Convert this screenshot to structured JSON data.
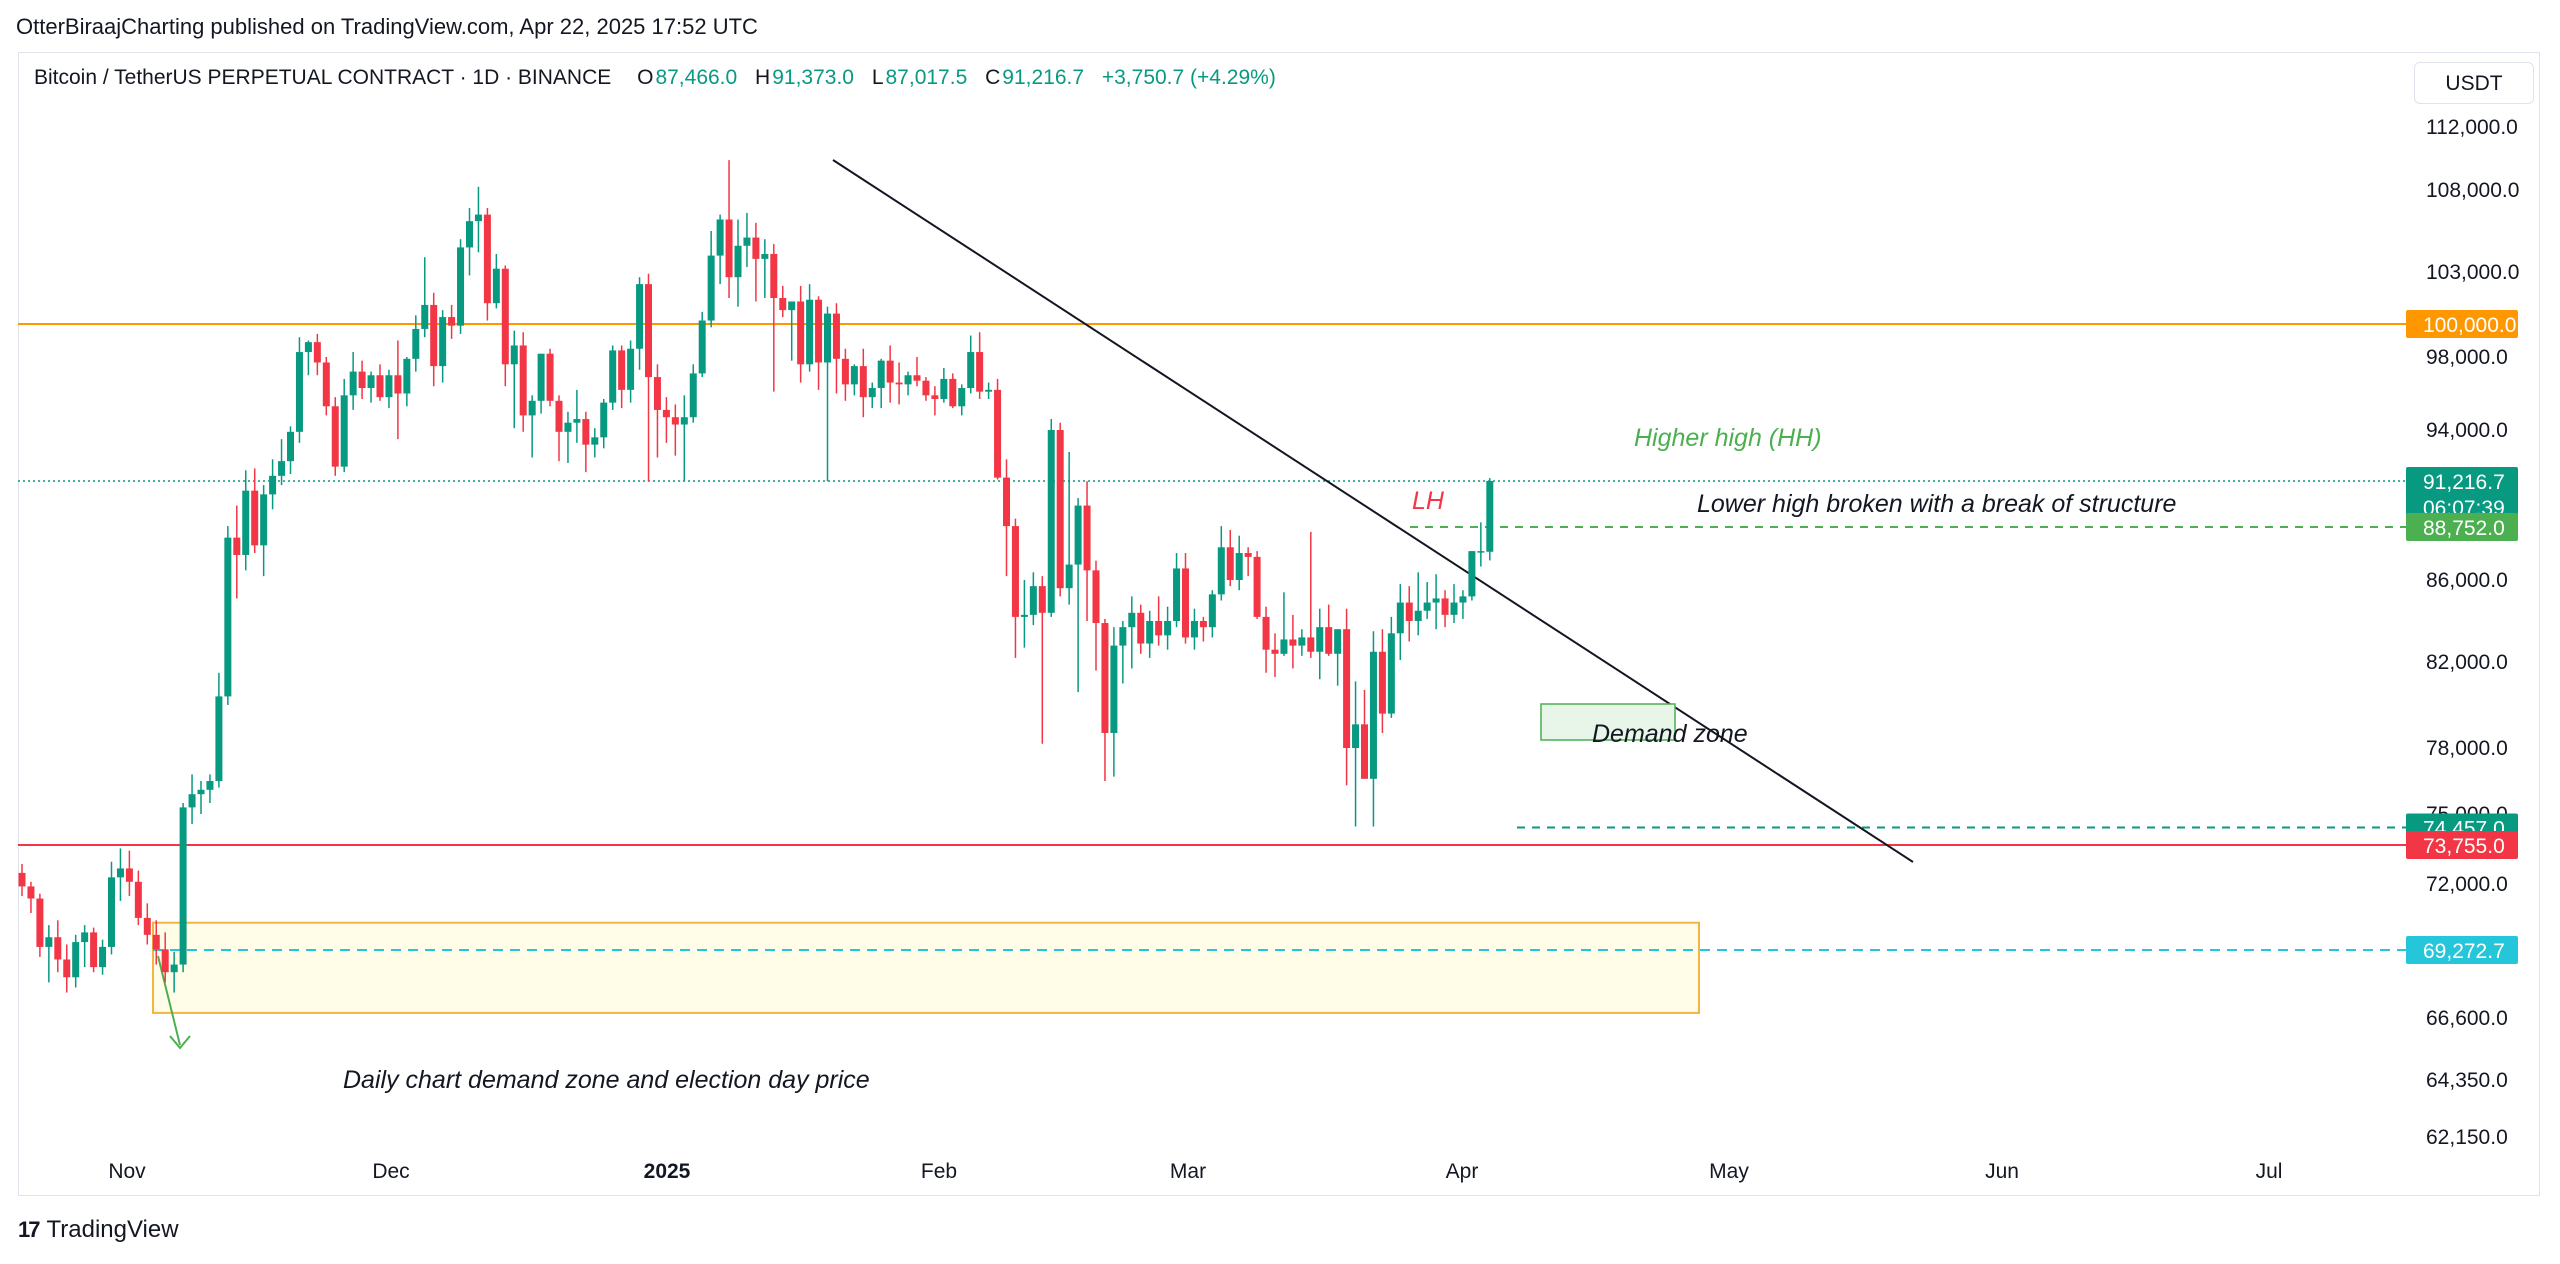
{
  "header": {
    "publisher": "OtterBiraajCharting published on TradingView.com, Apr 22, 2025 17:52 UTC"
  },
  "legend": {
    "symbol": "Bitcoin / TetherUS PERPETUAL CONTRACT · 1D · BINANCE",
    "open_label": "O",
    "open": "87,466.0",
    "high_label": "H",
    "high": "91,373.0",
    "low_label": "L",
    "low": "87,017.5",
    "close_label": "C",
    "close": "91,216.7",
    "change": "+3,750.7 (+4.29%)"
  },
  "currency_button": "USDT",
  "footer": {
    "logo_text": "TradingView"
  },
  "colors": {
    "up": "#089981",
    "down": "#f23645",
    "orange": "#ff9800",
    "red_line": "#f23645",
    "green_anno": "#4caf50",
    "cyan": "#00bcd4",
    "demand_fill": "#fffde7"
  },
  "chart_data": {
    "type": "candlestick",
    "title": "Bitcoin / TetherUS PERPETUAL CONTRACT · 1D · BINANCE",
    "x_ticks": [
      "Nov",
      "Dec",
      "2025",
      "Feb",
      "Mar",
      "Apr",
      "May",
      "Jun",
      "Jul"
    ],
    "y_ticks": [
      "112,000.0",
      "108,000.0",
      "103,000.0",
      "98,000.0",
      "94,000.0",
      "86,000.0",
      "82,000.0",
      "78,000.0",
      "75,000.0",
      "72,000.0",
      "66,600.0",
      "64,350.0",
      "62,150.0"
    ],
    "price_labels": [
      {
        "value": "100,000.0",
        "color": "#ff9800"
      },
      {
        "value": "91,216.7",
        "sub": "06:07:39",
        "color": "#089981"
      },
      {
        "value": "88,752.0",
        "color": "#4caf50"
      },
      {
        "value": "74,457.0",
        "color": "#089981"
      },
      {
        "value": "73,755.0",
        "color": "#f23645"
      },
      {
        "value": "69,272.7",
        "color": "#26c6da"
      }
    ],
    "horizontal_lines": [
      {
        "price": 100000,
        "color": "#ff9800",
        "style": "solid"
      },
      {
        "price": 91216.7,
        "color": "#089981",
        "style": "dotted"
      },
      {
        "price": 73755,
        "color": "#f23645",
        "style": "solid"
      },
      {
        "price": 69272.7,
        "color": "#26c6da",
        "style": "dashed"
      }
    ],
    "candles": [
      [
        72500,
        72900,
        71500,
        71900
      ],
      [
        71900,
        72100,
        70800,
        71400
      ],
      [
        71400,
        71600,
        69000,
        69400
      ],
      [
        69400,
        70300,
        68000,
        69800
      ],
      [
        69800,
        70500,
        68400,
        68900
      ],
      [
        68900,
        69500,
        67600,
        68200
      ],
      [
        68200,
        69900,
        67800,
        69600
      ],
      [
        69600,
        70300,
        68600,
        70000
      ],
      [
        70000,
        70200,
        68400,
        68600
      ],
      [
        68600,
        69700,
        68300,
        69400
      ],
      [
        69400,
        73000,
        69100,
        72300
      ],
      [
        72300,
        73600,
        71300,
        72700
      ],
      [
        72700,
        73500,
        71500,
        72100
      ],
      [
        72100,
        72600,
        70300,
        70600
      ],
      [
        70600,
        71200,
        69500,
        69900
      ],
      [
        69900,
        70500,
        68700,
        69300
      ],
      [
        69300,
        70000,
        68000,
        68400
      ],
      [
        68400,
        69200,
        67600,
        68700
      ],
      [
        68700,
        75500,
        68400,
        75300
      ],
      [
        75300,
        76800,
        74600,
        75900
      ],
      [
        75900,
        76500,
        75000,
        76100
      ],
      [
        76100,
        76800,
        75500,
        76500
      ],
      [
        76500,
        81500,
        76200,
        80400
      ],
      [
        80400,
        88800,
        80000,
        88200
      ],
      [
        88200,
        89900,
        85100,
        87300
      ],
      [
        87300,
        91800,
        86500,
        90700
      ],
      [
        90700,
        91900,
        87400,
        87800
      ],
      [
        87800,
        91000,
        86200,
        90500
      ],
      [
        90500,
        92400,
        89700,
        91500
      ],
      [
        91500,
        93500,
        91000,
        92300
      ],
      [
        92300,
        94200,
        91600,
        93900
      ],
      [
        93900,
        99200,
        93300,
        98300
      ],
      [
        98300,
        99000,
        97000,
        98900
      ],
      [
        98900,
        99400,
        97000,
        97700
      ],
      [
        97700,
        98000,
        94800,
        95300
      ],
      [
        95300,
        95800,
        91500,
        92000
      ],
      [
        92000,
        96800,
        91700,
        95900
      ],
      [
        95900,
        98300,
        95100,
        97200
      ],
      [
        97200,
        97800,
        95700,
        96300
      ],
      [
        96300,
        97200,
        95500,
        97000
      ],
      [
        97000,
        97600,
        95600,
        95800
      ],
      [
        95800,
        97300,
        95200,
        97000
      ],
      [
        97000,
        99000,
        93500,
        96000
      ],
      [
        96000,
        98000,
        95300,
        97900
      ],
      [
        97900,
        100500,
        97200,
        99700
      ],
      [
        99700,
        103900,
        99200,
        101100
      ],
      [
        101100,
        101800,
        96400,
        97500
      ],
      [
        97500,
        100800,
        96600,
        100400
      ],
      [
        100400,
        101100,
        99100,
        99900
      ],
      [
        99900,
        105000,
        99400,
        104500
      ],
      [
        104500,
        106900,
        102800,
        106100
      ],
      [
        106100,
        108200,
        104200,
        106500
      ],
      [
        106500,
        106900,
        100200,
        101200
      ],
      [
        101200,
        104100,
        100900,
        103200
      ],
      [
        103200,
        103400,
        96400,
        97600
      ],
      [
        97600,
        99600,
        94100,
        98700
      ],
      [
        98700,
        99500,
        93900,
        94800
      ],
      [
        94800,
        95900,
        92500,
        95600
      ],
      [
        95600,
        98100,
        94900,
        98200
      ],
      [
        98200,
        98500,
        95300,
        95600
      ],
      [
        95600,
        95900,
        92300,
        93900
      ],
      [
        93900,
        95000,
        92200,
        94400
      ],
      [
        94400,
        96200,
        93300,
        94600
      ],
      [
        94600,
        95000,
        91700,
        93200
      ],
      [
        93200,
        94100,
        92500,
        93600
      ],
      [
        93600,
        95700,
        93000,
        95500
      ],
      [
        95500,
        98700,
        95100,
        98400
      ],
      [
        98400,
        98700,
        95200,
        96200
      ],
      [
        96200,
        99000,
        95500,
        98500
      ],
      [
        98500,
        102700,
        97300,
        102300
      ],
      [
        102300,
        102900,
        91200,
        96900
      ],
      [
        96900,
        97600,
        92500,
        95100
      ],
      [
        95100,
        95800,
        93300,
        94700
      ],
      [
        94700,
        95400,
        92600,
        94300
      ],
      [
        94300,
        95900,
        91200,
        94700
      ],
      [
        94700,
        97600,
        94400,
        97100
      ],
      [
        97100,
        100700,
        96900,
        100200
      ],
      [
        100200,
        105500,
        99800,
        104000
      ],
      [
        104000,
        106500,
        102300,
        106200
      ],
      [
        106200,
        109900,
        101500,
        102700
      ],
      [
        102700,
        106200,
        101000,
        104600
      ],
      [
        104600,
        106600,
        103300,
        105100
      ],
      [
        105100,
        106000,
        101300,
        103800
      ],
      [
        103800,
        105000,
        101500,
        104100
      ],
      [
        104100,
        104700,
        96100,
        101500
      ],
      [
        101500,
        102200,
        100400,
        100800
      ],
      [
        100800,
        101000,
        97800,
        101300
      ],
      [
        101300,
        102200,
        96600,
        97600
      ],
      [
        97600,
        102300,
        97200,
        101400
      ],
      [
        101400,
        101600,
        96200,
        97700
      ],
      [
        97700,
        101000,
        91200,
        100600
      ],
      [
        100600,
        101200,
        96000,
        97900
      ],
      [
        97900,
        98500,
        95600,
        96500
      ],
      [
        96500,
        97600,
        95900,
        97500
      ],
      [
        97500,
        98500,
        94700,
        95800
      ],
      [
        95800,
        96600,
        95200,
        96300
      ],
      [
        96300,
        97900,
        95200,
        97800
      ],
      [
        97800,
        98700,
        95500,
        96600
      ],
      [
        96600,
        97700,
        95400,
        96500
      ],
      [
        96500,
        97200,
        95900,
        97000
      ],
      [
        97000,
        98000,
        96400,
        96700
      ],
      [
        96700,
        96900,
        95600,
        95900
      ],
      [
        95900,
        96400,
        94800,
        95700
      ],
      [
        95700,
        97400,
        95500,
        96800
      ],
      [
        96800,
        97100,
        95200,
        95300
      ],
      [
        95300,
        96500,
        94800,
        96300
      ],
      [
        96300,
        99300,
        96000,
        98300
      ],
      [
        98300,
        99500,
        95700,
        96100
      ],
      [
        96100,
        96600,
        95700,
        96200
      ],
      [
        96200,
        96800,
        91300,
        91400
      ],
      [
        91400,
        92400,
        86200,
        88800
      ],
      [
        88800,
        89200,
        82200,
        84200
      ],
      [
        84200,
        86000,
        82700,
        84300
      ],
      [
        84300,
        86400,
        83800,
        85700
      ],
      [
        85700,
        86200,
        78200,
        84400
      ],
      [
        84400,
        94600,
        84200,
        94000
      ],
      [
        94000,
        94400,
        85200,
        85600
      ],
      [
        85600,
        92800,
        84800,
        86800
      ],
      [
        86800,
        90300,
        80600,
        89900
      ],
      [
        89900,
        91200,
        84000,
        86500
      ],
      [
        86500,
        87000,
        81600,
        83900
      ],
      [
        83900,
        84100,
        76500,
        78700
      ],
      [
        78700,
        83700,
        76700,
        82800
      ],
      [
        82800,
        84000,
        81000,
        83700
      ],
      [
        83700,
        85200,
        81700,
        84400
      ],
      [
        84400,
        84800,
        82400,
        82900
      ],
      [
        82900,
        84500,
        82200,
        84000
      ],
      [
        84000,
        85200,
        82800,
        83300
      ],
      [
        83300,
        84700,
        82600,
        84000
      ],
      [
        84000,
        87400,
        83700,
        86600
      ],
      [
        86600,
        87400,
        82900,
        83200
      ],
      [
        83200,
        84600,
        82600,
        84000
      ],
      [
        84000,
        84200,
        83000,
        83700
      ],
      [
        83700,
        85500,
        83200,
        85300
      ],
      [
        85300,
        88800,
        85000,
        87700
      ],
      [
        87700,
        88600,
        85700,
        86000
      ],
      [
        86000,
        88300,
        85500,
        87400
      ],
      [
        87400,
        87700,
        86200,
        87200
      ],
      [
        87200,
        87500,
        84100,
        84200
      ],
      [
        84200,
        84700,
        81500,
        82600
      ],
      [
        82600,
        83400,
        81300,
        82400
      ],
      [
        82400,
        85400,
        82300,
        83100
      ],
      [
        83100,
        84300,
        81700,
        82800
      ],
      [
        82800,
        83600,
        82300,
        83200
      ],
      [
        83200,
        88500,
        82200,
        82500
      ],
      [
        82500,
        84600,
        81200,
        83700
      ],
      [
        83700,
        84800,
        82300,
        82400
      ],
      [
        82400,
        83600,
        80900,
        83600
      ],
      [
        83600,
        84600,
        76300,
        78000
      ],
      [
        78000,
        81100,
        74500,
        79100
      ],
      [
        79100,
        80700,
        76600,
        76600
      ],
      [
        76600,
        83500,
        74500,
        82500
      ],
      [
        82500,
        83600,
        78700,
        79600
      ],
      [
        79600,
        84200,
        79400,
        83400
      ],
      [
        83400,
        85800,
        82100,
        84900
      ],
      [
        84900,
        85700,
        83000,
        84000
      ],
      [
        84000,
        86400,
        83300,
        84500
      ],
      [
        84500,
        85900,
        84100,
        84900
      ],
      [
        84900,
        86300,
        83600,
        85100
      ],
      [
        85100,
        85500,
        83700,
        84300
      ],
      [
        84300,
        85800,
        83900,
        84900
      ],
      [
        84900,
        85500,
        84100,
        85200
      ],
      [
        85200,
        87500,
        85000,
        87500
      ],
      [
        87500,
        89000,
        86700,
        87500
      ],
      [
        87466,
        91373,
        87017.5,
        91216.7
      ]
    ]
  },
  "annotations": {
    "hh": "Higher high (HH)",
    "lh": "LH",
    "bos": "Lower high broken with a break of structure",
    "demand_zone": "Demand zone",
    "daily_zone": "Daily chart demand zone and election day price"
  }
}
